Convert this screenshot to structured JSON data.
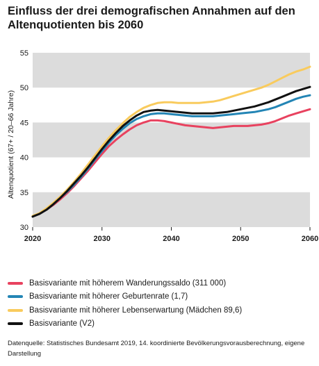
{
  "title": "Einfluss der drei demografischen Annahmen auf den Altenquotienten bis 2060",
  "source": "Datenquelle: Statistisches Bundesamt 2019, 14. koordinierte Bevölkerungsvorausberechnung, eigene Darstellung",
  "chart_data": {
    "type": "line",
    "ylabel": "Altenquotient (67+ / 20–66 Jahre)",
    "xlabel": "",
    "xlim": [
      2020,
      2060
    ],
    "ylim": [
      30,
      55
    ],
    "x_ticks": [
      "2020",
      "2030",
      "2040",
      "2050",
      "2060"
    ],
    "y_ticks": [
      "30",
      "35",
      "40",
      "45",
      "50",
      "55"
    ],
    "grid": "alternating horizontal bands",
    "legend_position": "bottom",
    "colors": {
      "band": "#dcdcdc",
      "wanderung": "#e8425f",
      "geburten": "#2385b5",
      "lebenserwartung": "#f9cb5d",
      "basis": "#111111"
    },
    "x": [
      2020,
      2021,
      2022,
      2023,
      2024,
      2025,
      2026,
      2027,
      2028,
      2029,
      2030,
      2031,
      2032,
      2033,
      2034,
      2035,
      2036,
      2037,
      2038,
      2039,
      2040,
      2041,
      2042,
      2043,
      2044,
      2045,
      2046,
      2047,
      2048,
      2049,
      2050,
      2051,
      2052,
      2053,
      2054,
      2055,
      2056,
      2057,
      2058,
      2059,
      2060
    ],
    "series": [
      {
        "name": "Basisvariante mit höherem Wanderungssaldo (311 000)",
        "color_key": "wanderung",
        "values": [
          31.5,
          31.9,
          32.5,
          33.2,
          34.0,
          34.9,
          35.9,
          37.0,
          38.1,
          39.3,
          40.5,
          41.6,
          42.5,
          43.3,
          44.0,
          44.6,
          45.0,
          45.3,
          45.3,
          45.2,
          45.0,
          44.8,
          44.6,
          44.5,
          44.4,
          44.3,
          44.2,
          44.3,
          44.4,
          44.5,
          44.5,
          44.5,
          44.6,
          44.7,
          44.9,
          45.2,
          45.6,
          46.0,
          46.3,
          46.6,
          46.9
        ]
      },
      {
        "name": "Basisvariante mit höherer Geburtenrate (1,7)",
        "color_key": "geburten",
        "values": [
          31.5,
          31.9,
          32.5,
          33.3,
          34.2,
          35.1,
          36.1,
          37.2,
          38.4,
          39.7,
          40.9,
          42.1,
          43.2,
          44.1,
          44.9,
          45.5,
          45.9,
          46.2,
          46.3,
          46.3,
          46.2,
          46.1,
          46.0,
          45.9,
          45.9,
          45.9,
          45.9,
          46.0,
          46.1,
          46.2,
          46.3,
          46.4,
          46.5,
          46.7,
          46.9,
          47.2,
          47.6,
          48.0,
          48.4,
          48.7,
          48.9
        ]
      },
      {
        "name": "Basisvariante mit höherer Lebenserwartung (Mädchen 89,6)",
        "color_key": "lebenserwartung",
        "values": [
          31.6,
          32.0,
          32.7,
          33.5,
          34.4,
          35.4,
          36.5,
          37.7,
          39.0,
          40.3,
          41.6,
          42.8,
          43.9,
          44.9,
          45.8,
          46.5,
          47.1,
          47.5,
          47.8,
          47.9,
          47.9,
          47.8,
          47.8,
          47.8,
          47.8,
          47.9,
          48.0,
          48.2,
          48.5,
          48.8,
          49.1,
          49.4,
          49.7,
          50.0,
          50.4,
          50.9,
          51.4,
          51.9,
          52.3,
          52.6,
          53.0
        ]
      },
      {
        "name": "Basisvariante (V2)",
        "color_key": "basis",
        "values": [
          31.5,
          31.9,
          32.5,
          33.3,
          34.2,
          35.2,
          36.3,
          37.4,
          38.6,
          39.9,
          41.2,
          42.4,
          43.5,
          44.5,
          45.3,
          46.0,
          46.5,
          46.7,
          46.8,
          46.7,
          46.6,
          46.5,
          46.4,
          46.3,
          46.3,
          46.3,
          46.3,
          46.4,
          46.5,
          46.7,
          46.9,
          47.1,
          47.3,
          47.6,
          47.9,
          48.3,
          48.7,
          49.1,
          49.5,
          49.8,
          50.1
        ]
      }
    ]
  }
}
